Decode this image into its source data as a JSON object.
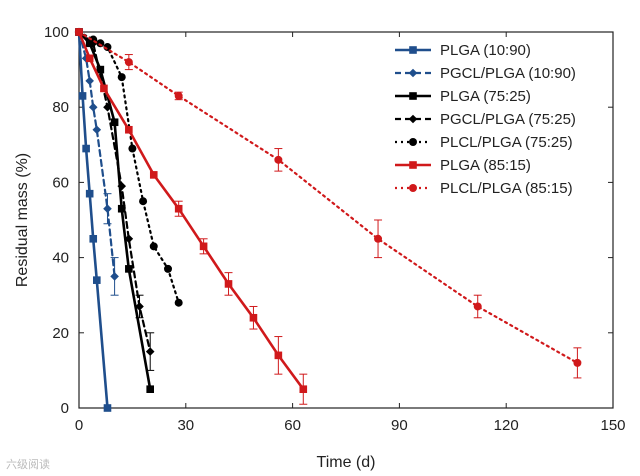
{
  "chart_data": {
    "type": "line",
    "xlabel": "Time (d)",
    "ylabel": "Residual mass (%)",
    "xlim": [
      0,
      150
    ],
    "ylim": [
      0,
      100
    ],
    "x_ticks": [
      0,
      30,
      60,
      90,
      120,
      150
    ],
    "y_ticks": [
      0,
      20,
      40,
      60,
      80,
      100
    ],
    "grid": false,
    "legend_position": "top-right",
    "series": [
      {
        "name": "PLGA (10:90)",
        "color": "#1f4e8c",
        "line_style": "solid",
        "marker": "square",
        "points": [
          [
            0,
            100
          ],
          [
            1,
            83
          ],
          [
            2,
            69
          ],
          [
            3,
            57
          ],
          [
            4,
            45
          ],
          [
            5,
            34
          ],
          [
            8,
            0
          ]
        ]
      },
      {
        "name": "PGCL/PLGA (10:90)",
        "color": "#1f4e8c",
        "line_style": "dashed",
        "marker": "diamond",
        "points": [
          [
            0,
            100
          ],
          [
            2,
            93
          ],
          [
            3,
            87
          ],
          [
            4,
            80
          ],
          [
            5,
            74
          ],
          [
            8,
            53
          ],
          [
            10,
            35
          ]
        ],
        "errors": [
          0,
          0,
          0,
          0,
          0,
          4,
          5
        ]
      },
      {
        "name": "PLGA (75:25)",
        "color": "#000000",
        "line_style": "solid",
        "marker": "square",
        "points": [
          [
            0,
            100
          ],
          [
            3,
            97
          ],
          [
            6,
            90
          ],
          [
            10,
            76
          ],
          [
            12,
            53
          ],
          [
            14,
            37
          ],
          [
            20,
            5
          ]
        ]
      },
      {
        "name": "PGCL/PLGA (75:25)",
        "color": "#000000",
        "line_style": "dashed",
        "marker": "diamond",
        "points": [
          [
            0,
            100
          ],
          [
            4,
            97
          ],
          [
            8,
            80
          ],
          [
            12,
            59
          ],
          [
            14,
            45
          ],
          [
            17,
            27
          ],
          [
            20,
            15
          ]
        ],
        "errors": [
          0,
          0,
          0,
          0,
          0,
          3,
          5
        ]
      },
      {
        "name": "PLCL/PLGA (75:25)",
        "color": "#000000",
        "line_style": "dotted",
        "marker": "circle",
        "points": [
          [
            0,
            100
          ],
          [
            4,
            98
          ],
          [
            6,
            97
          ],
          [
            8,
            96
          ],
          [
            12,
            88
          ],
          [
            15,
            69
          ],
          [
            18,
            55
          ],
          [
            21,
            43
          ],
          [
            25,
            37
          ],
          [
            28,
            28
          ]
        ]
      },
      {
        "name": "PLGA (85:15)",
        "color": "#d0191b",
        "line_style": "solid",
        "marker": "square",
        "points": [
          [
            0,
            100
          ],
          [
            3,
            93
          ],
          [
            7,
            85
          ],
          [
            14,
            74
          ],
          [
            21,
            62
          ],
          [
            28,
            53
          ],
          [
            35,
            43
          ],
          [
            42,
            33
          ],
          [
            49,
            24
          ],
          [
            56,
            14
          ],
          [
            63,
            5
          ]
        ],
        "errors": [
          0,
          0,
          0,
          0,
          0,
          2,
          2,
          3,
          3,
          5,
          4
        ]
      },
      {
        "name": "PLCL/PLGA (85:15)",
        "color": "#d0191b",
        "line_style": "dotted",
        "marker": "circle",
        "points": [
          [
            0,
            100
          ],
          [
            14,
            92
          ],
          [
            28,
            83
          ],
          [
            56,
            66
          ],
          [
            84,
            45
          ],
          [
            112,
            27
          ],
          [
            140,
            12
          ]
        ],
        "errors": [
          0,
          2,
          1,
          3,
          5,
          3,
          4
        ]
      }
    ]
  },
  "watermark_text": "六级阅读"
}
